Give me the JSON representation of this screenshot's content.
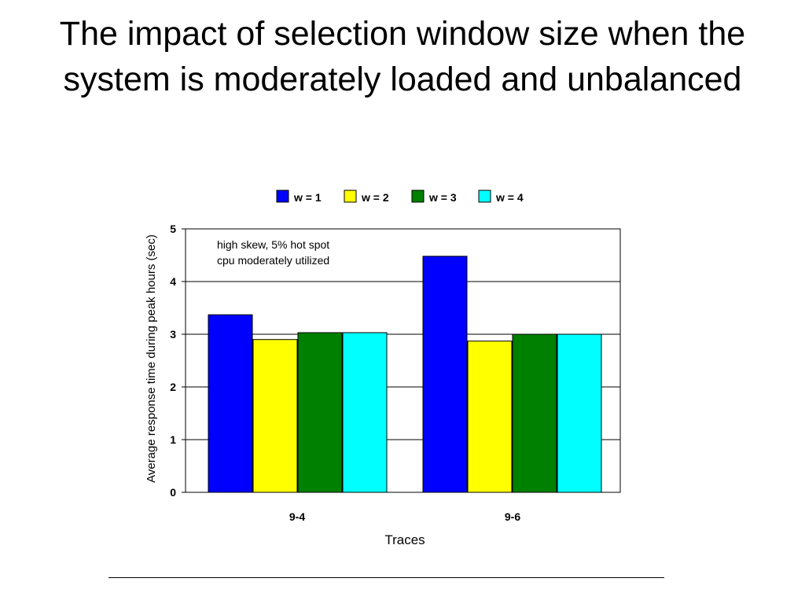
{
  "slide": {
    "title": "The impact of selection window size when the system is moderately loaded and unbalanced"
  },
  "colors": {
    "w1": "#0000ff",
    "w2": "#ffff00",
    "w3": "#008000",
    "w4": "#00ffff",
    "gridline": "#000000",
    "background": "#ffffff"
  },
  "chart_data": {
    "type": "bar",
    "title": "",
    "xlabel": "Traces",
    "ylabel": "Average response time during peak hours (sec)",
    "ylim": [
      0,
      5
    ],
    "yticks": [
      "0",
      "1",
      "2",
      "3",
      "4",
      "5"
    ],
    "categories": [
      "9-4",
      "9-6"
    ],
    "series": [
      {
        "name": "w = 1",
        "values": [
          3.37,
          4.48
        ]
      },
      {
        "name": "w = 2",
        "values": [
          2.9,
          2.87
        ]
      },
      {
        "name": "w = 3",
        "values": [
          3.03,
          3.0
        ]
      },
      {
        "name": "w = 4",
        "values": [
          3.03,
          3.0
        ]
      }
    ],
    "annotation": [
      "high skew, 5% hot spot",
      "cpu moderately utilized"
    ],
    "legend_position": "top",
    "grid": true
  }
}
